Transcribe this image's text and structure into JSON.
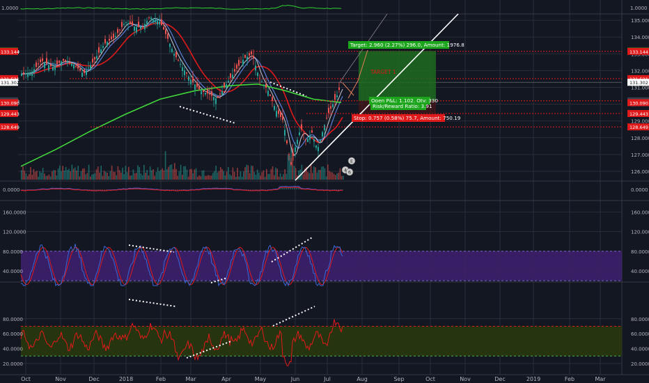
{
  "colors": {
    "background": "#131722",
    "grid": "#2a2e39",
    "axis_text": "#b2b5be",
    "candle_up": "#26a69a",
    "candle_down": "#ef5350",
    "ma_short": "#c9c9d4",
    "ma_mid": "#5b7fd6",
    "ma_red": "#e0191b",
    "ma_green": "#41d83a",
    "pane_top_line": "#2fd12f",
    "dashed_red": "#e0191b",
    "trendline": "#ffffff",
    "macd": "#4f63d6",
    "macd_signal": "#e0191b",
    "stoch_k": "#3a68d8",
    "stoch_d": "#e0191b",
    "stoch_fill": "#3d1f6b",
    "rsi_line": "#e31a1a",
    "rsi_fill": "#27360f",
    "rsi_band": "#4caf50",
    "target_box": "#1f6b1f",
    "target_label_bg": "#1da51d",
    "stop_label_bg": "#e0191b",
    "label_text": "#ffffff"
  },
  "top_strip": {
    "axis_value": "1.0000"
  },
  "panes": {
    "price": {
      "ticks": [
        "135.000",
        "134.000",
        "133.000",
        "132.000",
        "131.000",
        "130.000",
        "129.000",
        "128.000",
        "127.000",
        "126.000"
      ],
      "price_labels": [
        {
          "value": "133.160",
          "kind": "green"
        },
        {
          "value": "133.144",
          "kind": "red"
        },
        {
          "value": "131.521",
          "kind": "red"
        },
        {
          "value": "131.302",
          "kind": "white"
        },
        {
          "value": "130.200",
          "kind": "grey"
        },
        {
          "value": "130.090",
          "kind": "red"
        },
        {
          "value": "129.443",
          "kind": "red"
        },
        {
          "value": "128.649",
          "kind": "red"
        }
      ],
      "annotations": {
        "target": "Target: 2.960 (2.27%) 296.0, Amount: 1976.8",
        "target_1": "TARGET 1",
        "open": "Open P&L: 1.102, Qty: 330",
        "rr": "Risk/Reward Ratio: 3.91",
        "stop": "Stop: 0.757 (0.58%) 75.7, Amount: 750.19"
      },
      "marker_labels": [
        "E",
        "4",
        "6"
      ]
    },
    "macd": {
      "ticks": [
        "0.0000"
      ]
    },
    "stoch": {
      "ticks": [
        "160.0000",
        "120.0000",
        "80.0000",
        "40.0000"
      ],
      "upper_band": 80,
      "lower_band": 20
    },
    "rsi": {
      "ticks": [
        "80.0000",
        "60.0000",
        "40.0000",
        "20.0000"
      ],
      "upper_band": 70,
      "lower_band": 30
    }
  },
  "time_axis": [
    "Oct",
    "Nov",
    "Dec",
    "2018",
    "Feb",
    "Mar",
    "Apr",
    "May",
    "Jun",
    "Jul",
    "Aug",
    "Sep",
    "Oct",
    "Nov",
    "Dec",
    "2019",
    "Feb",
    "Mar"
  ],
  "chart_data": {
    "type": "line",
    "title": "",
    "x": [
      "Oct",
      "Nov",
      "Dec",
      "2018",
      "Feb",
      "Mar",
      "Apr",
      "May",
      "Jun",
      "Jul"
    ],
    "series": [
      {
        "values": [
          131.8,
          132.3,
          133.2,
          134.8,
          133.6,
          130.4,
          131.1,
          133.0,
          127.3,
          131.3
        ]
      }
    ],
    "ylabel": "",
    "ylim": [
      125.5,
      135.3
    ],
    "grid": true,
    "levels": [
      133.16,
      133.144,
      131.521,
      131.302,
      130.2,
      130.09,
      129.443,
      128.649
    ]
  }
}
